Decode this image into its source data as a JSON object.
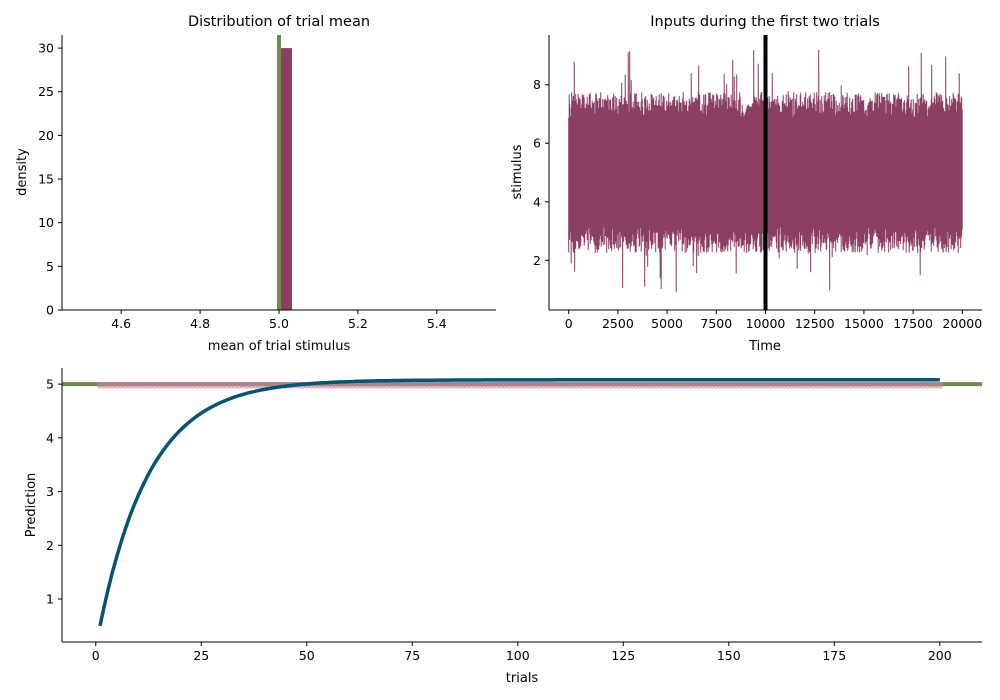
{
  "colors": {
    "histogram": "#8B3F62",
    "true_mean": "#6E8B50",
    "stimulus": "#8B3F62",
    "trial_boundary": "#000000",
    "prediction": "#045473",
    "trial_means": "#C9849C"
  },
  "chart_data": [
    {
      "type": "bar",
      "title": "Distribution of trial mean",
      "xlabel": "mean of trial stimulus",
      "ylabel": "density",
      "xlim": [
        4.45,
        5.55
      ],
      "ylim": [
        0,
        31.5
      ],
      "xticks": [
        "4.6",
        "4.8",
        "5.0",
        "5.2",
        "5.4"
      ],
      "yticks": [
        "0",
        "5",
        "10",
        "15",
        "20",
        "25",
        "30"
      ],
      "bins": [
        {
          "x0": 5.0,
          "x1": 5.033,
          "value": 30
        }
      ],
      "vline": 5.0,
      "grid": false
    },
    {
      "type": "line",
      "title": "Inputs during the first two trials",
      "xlabel": "Time",
      "ylabel": "stimulus",
      "xlim": [
        -1000,
        21000
      ],
      "ylim": [
        0.3,
        9.7
      ],
      "xticks": [
        "0",
        "2500",
        "5000",
        "7500",
        "10000",
        "12500",
        "15000",
        "17500",
        "20000"
      ],
      "yticks": [
        "2",
        "4",
        "6",
        "8"
      ],
      "series_range": [
        0,
        20000
      ],
      "band": {
        "low": 2.7,
        "high": 7.3,
        "min": 0.7,
        "max": 9.2
      },
      "vline": 10000,
      "grid": false
    },
    {
      "type": "line",
      "xlabel": "trials",
      "ylabel": "Prediction",
      "xlim": [
        -8,
        210
      ],
      "ylim": [
        0.2,
        5.3
      ],
      "xticks": [
        "0",
        "25",
        "50",
        "75",
        "100",
        "125",
        "150",
        "175",
        "200"
      ],
      "yticks": [
        "1",
        "2",
        "3",
        "4",
        "5"
      ],
      "hline": 5.0,
      "trial_means": {
        "x_range": [
          1,
          200
        ],
        "value": 4.98
      },
      "prediction": {
        "x_range": [
          1,
          200
        ],
        "start": 0.5,
        "asymptote": 5.08,
        "tau": 12
      }
    }
  ]
}
